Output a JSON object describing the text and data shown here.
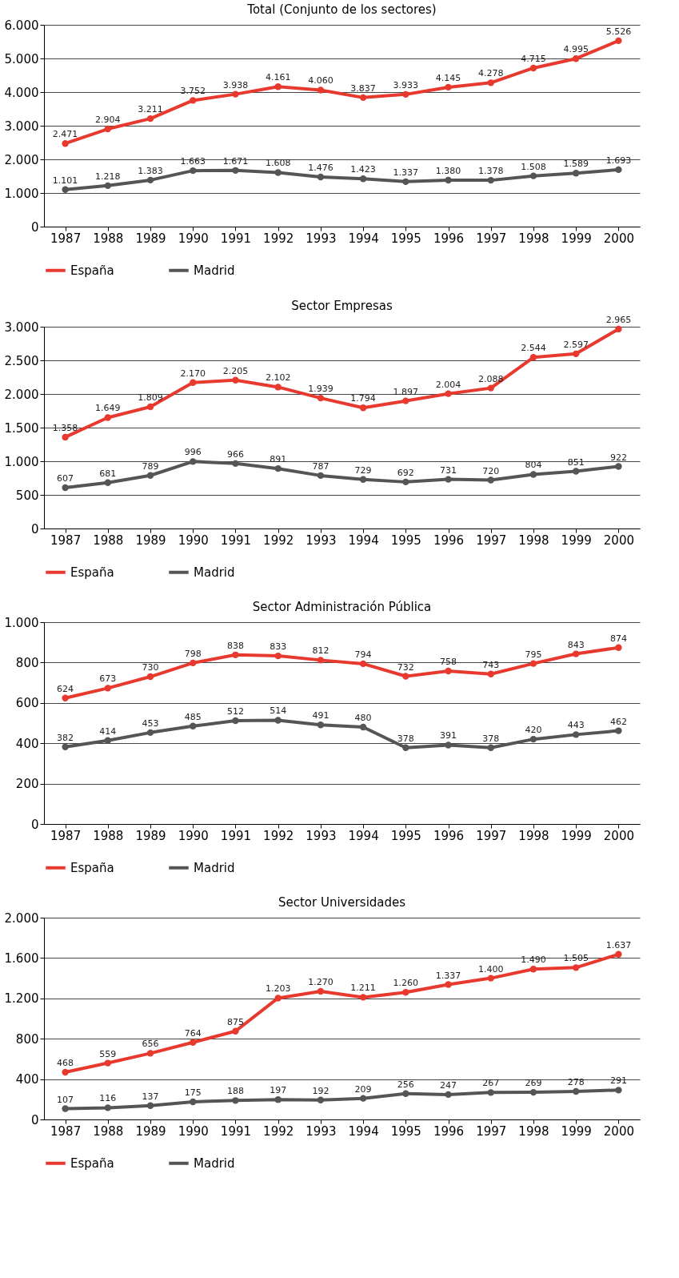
{
  "chart_data": [
    {
      "type": "line",
      "title": "Total (Conjunto de los sectores)",
      "categories": [
        "1987",
        "1988",
        "1989",
        "1990",
        "1991",
        "1992",
        "1993",
        "1994",
        "1995",
        "1996",
        "1997",
        "1998",
        "1999",
        "2000"
      ],
      "ylim": [
        0,
        6000
      ],
      "yticks": [
        0,
        {
          "value": 1000,
          "label": "1.000"
        },
        {
          "value": 2000,
          "label": "2.000"
        },
        {
          "value": 3000,
          "label": "3.000"
        },
        {
          "value": 4000,
          "label": "4.000"
        },
        {
          "value": 5000,
          "label": "5.000"
        },
        {
          "value": 6000,
          "label": "6.000"
        }
      ],
      "grid": "y",
      "legend": "bottom",
      "marker": "circle",
      "series": [
        {
          "name": "España",
          "color": "#e8392f",
          "values": [
            2471,
            2904,
            3211,
            3752,
            3938,
            4161,
            4060,
            3837,
            3933,
            4145,
            4278,
            4715,
            4995,
            5526
          ],
          "value_labels": [
            "2.471",
            "2.904",
            "3.211",
            "3.752",
            "3.938",
            "4.161",
            "4.060",
            "3.837",
            "3.933",
            "4.145",
            "4.278",
            "4.715",
            "4.995",
            "5.526"
          ]
        },
        {
          "name": "Madrid",
          "color": "#555555",
          "values": [
            1101,
            1218,
            1383,
            1663,
            1671,
            1608,
            1476,
            1423,
            1337,
            1380,
            1378,
            1508,
            1589,
            1693
          ],
          "value_labels": [
            "1.101",
            "1.218",
            "1.383",
            "1.663",
            "1.671",
            "1.608",
            "1.476",
            "1.423",
            "1.337",
            "1.380",
            "1.378",
            "1.508",
            "1.589",
            "1.693"
          ]
        }
      ]
    },
    {
      "type": "line",
      "title": "Sector Empresas",
      "categories": [
        "1987",
        "1988",
        "1989",
        "1990",
        "1991",
        "1992",
        "1993",
        "1994",
        "1995",
        "1996",
        "1997",
        "1998",
        "1999",
        "2000"
      ],
      "ylim": [
        0,
        3000
      ],
      "yticks": [
        0,
        500,
        {
          "value": 1000,
          "label": "1.000"
        },
        {
          "value": 1500,
          "label": "1.500"
        },
        {
          "value": 2000,
          "label": "2.000"
        },
        {
          "value": 2500,
          "label": "2.500"
        },
        {
          "value": 3000,
          "label": "3.000"
        }
      ],
      "grid": "y",
      "legend": "bottom",
      "marker": "circle",
      "series": [
        {
          "name": "España",
          "color": "#e8392f",
          "values": [
            1358,
            1649,
            1809,
            2170,
            2205,
            2102,
            1939,
            1794,
            1897,
            2004,
            2088,
            2544,
            2597,
            2965
          ],
          "value_labels": [
            "1.358",
            "1.649",
            "1.809",
            "2.170",
            "2.205",
            "2.102",
            "1.939",
            "1.794",
            "1.897",
            "2.004",
            "2.088",
            "2.544",
            "2.597",
            "2.965"
          ]
        },
        {
          "name": "Madrid",
          "color": "#555555",
          "values": [
            607,
            681,
            789,
            996,
            966,
            891,
            787,
            729,
            692,
            731,
            720,
            804,
            851,
            922
          ],
          "value_labels": [
            "607",
            "681",
            "789",
            "996",
            "966",
            "891",
            "787",
            "729",
            "692",
            "731",
            "720",
            "804",
            "851",
            "922"
          ]
        }
      ]
    },
    {
      "type": "line",
      "title": "Sector Administración Pública",
      "categories": [
        "1987",
        "1988",
        "1989",
        "1990",
        "1991",
        "1992",
        "1993",
        "1994",
        "1995",
        "1996",
        "1997",
        "1998",
        "1999",
        "2000"
      ],
      "ylim": [
        0,
        1000
      ],
      "yticks": [
        0,
        200,
        400,
        600,
        800,
        {
          "value": 1000,
          "label": "1.000"
        }
      ],
      "grid": "y",
      "legend": "bottom",
      "marker": "circle",
      "series": [
        {
          "name": "España",
          "color": "#e8392f",
          "values": [
            624,
            673,
            730,
            798,
            838,
            833,
            812,
            794,
            732,
            758,
            743,
            795,
            843,
            874
          ],
          "value_labels": [
            "624",
            "673",
            "730",
            "798",
            "838",
            "833",
            "812",
            "794",
            "732",
            "758",
            "743",
            "795",
            "843",
            "874"
          ]
        },
        {
          "name": "Madrid",
          "color": "#555555",
          "values": [
            382,
            414,
            453,
            485,
            512,
            514,
            491,
            480,
            378,
            391,
            378,
            420,
            443,
            462
          ],
          "value_labels": [
            "382",
            "414",
            "453",
            "485",
            "512",
            "514",
            "491",
            "480",
            "378",
            "391",
            "378",
            "420",
            "443",
            "462"
          ]
        }
      ]
    },
    {
      "type": "line",
      "title": "Sector Universidades",
      "categories": [
        "1987",
        "1988",
        "1989",
        "1990",
        "1991",
        "1992",
        "1993",
        "1994",
        "1995",
        "1996",
        "1997",
        "1998",
        "1999",
        "2000"
      ],
      "ylim": [
        0,
        2000
      ],
      "yticks": [
        0,
        400,
        800,
        {
          "value": 1200,
          "label": "1.200"
        },
        {
          "value": 1600,
          "label": "1.600"
        },
        {
          "value": 2000,
          "label": "2.000"
        }
      ],
      "grid": "y",
      "legend": "bottom",
      "marker": "circle",
      "series": [
        {
          "name": "España",
          "color": "#e8392f",
          "values": [
            468,
            559,
            656,
            764,
            875,
            1203,
            1270,
            1211,
            1260,
            1337,
            1400,
            1490,
            1505,
            1637
          ],
          "value_labels": [
            "468",
            "559",
            "656",
            "764",
            "875",
            "1.203",
            "1.270",
            "1.211",
            "1.260",
            "1.337",
            "1.400",
            "1.490",
            "1.505",
            "1.637"
          ]
        },
        {
          "name": "Madrid",
          "color": "#555555",
          "values": [
            107,
            116,
            137,
            175,
            188,
            197,
            192,
            209,
            256,
            247,
            267,
            269,
            278,
            291
          ],
          "value_labels": [
            "107",
            "116",
            "137",
            "175",
            "188",
            "197",
            "192",
            "209",
            "256",
            "247",
            "267",
            "269",
            "278",
            "291"
          ]
        }
      ]
    }
  ]
}
